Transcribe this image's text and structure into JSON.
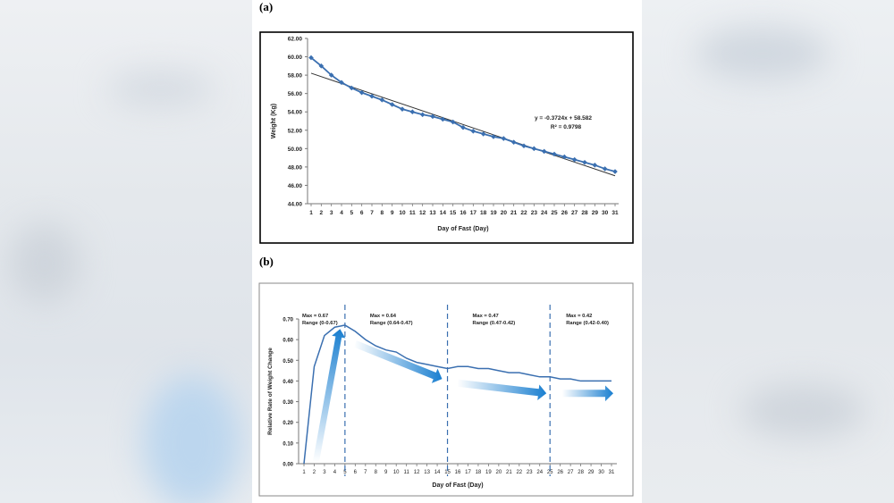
{
  "panel_a": {
    "label": "(a)"
  },
  "panel_b": {
    "label": "(b)"
  },
  "colors": {
    "series": "#3a6fb0",
    "trend": "#333333",
    "arrow": "#1a7fd0",
    "divider": "#3a6fb0"
  },
  "chart_data": [
    {
      "type": "line",
      "title": "",
      "xlabel": "Day of Fast (Day)",
      "ylabel": "Weight (Kg)",
      "ylim": [
        44,
        62
      ],
      "yticks": [
        "44.00",
        "46.00",
        "48.00",
        "50.00",
        "52.00",
        "54.00",
        "56.00",
        "58.00",
        "60.00",
        "62.00"
      ],
      "x": [
        1,
        2,
        3,
        4,
        5,
        6,
        7,
        8,
        9,
        10,
        11,
        12,
        13,
        14,
        15,
        16,
        17,
        18,
        19,
        20,
        21,
        22,
        23,
        24,
        25,
        26,
        27,
        28,
        29,
        30,
        31
      ],
      "series": [
        {
          "name": "Weight",
          "values": [
            59.9,
            59.0,
            58.0,
            57.2,
            56.6,
            56.1,
            55.7,
            55.3,
            54.8,
            54.3,
            54.0,
            53.7,
            53.5,
            53.2,
            52.9,
            52.3,
            51.9,
            51.6,
            51.3,
            51.1,
            50.7,
            50.3,
            50.0,
            49.7,
            49.4,
            49.1,
            48.8,
            48.5,
            48.2,
            47.8,
            47.5
          ]
        }
      ],
      "trendline": {
        "slope": -0.3724,
        "intercept": 58.582
      },
      "annotations": [
        "y = -0.3724x + 58.582",
        "R² = 0.9798"
      ]
    },
    {
      "type": "line",
      "title": "",
      "xlabel": "Day of Fast (Day)",
      "ylabel": "Relative Rate of Weight Change",
      "ylim": [
        0,
        0.7
      ],
      "yticks": [
        "0.00",
        "0.10",
        "0.20",
        "0.30",
        "0.40",
        "0.50",
        "0.60",
        "0.70"
      ],
      "x": [
        1,
        2,
        3,
        4,
        5,
        6,
        7,
        8,
        9,
        10,
        11,
        12,
        13,
        14,
        15,
        16,
        17,
        18,
        19,
        20,
        21,
        22,
        23,
        24,
        25,
        26,
        27,
        28,
        29,
        30,
        31
      ],
      "series": [
        {
          "name": "Relative rate",
          "values": [
            0.0,
            0.47,
            0.62,
            0.66,
            0.67,
            0.64,
            0.6,
            0.57,
            0.55,
            0.54,
            0.51,
            0.49,
            0.48,
            0.47,
            0.46,
            0.47,
            0.47,
            0.46,
            0.46,
            0.45,
            0.44,
            0.44,
            0.43,
            0.42,
            0.42,
            0.41,
            0.41,
            0.4,
            0.4,
            0.4,
            0.4
          ]
        }
      ],
      "phase_dividers": [
        5,
        15,
        25
      ],
      "phases": [
        {
          "max": "Max = 0.67",
          "range": "Range (0-0.67)"
        },
        {
          "max": "Max = 0.64",
          "range": "Range (0.64-0.47)"
        },
        {
          "max": "Max = 0.47",
          "range": "Range (0.47-0.42)"
        },
        {
          "max": "Max = 0.42",
          "range": "Range (0.42-0.40)"
        }
      ]
    }
  ]
}
